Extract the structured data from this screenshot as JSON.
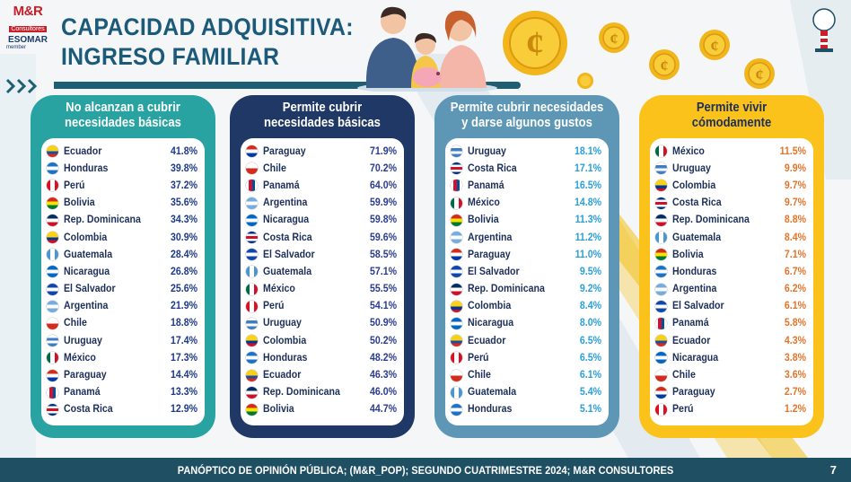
{
  "logo": {
    "brand": "M&R",
    "sub": "Consultores",
    "esomar": "ESOMAR",
    "member": "member"
  },
  "title": {
    "line1": "CAPACIDAD ADQUISITIVA:",
    "line2": "INGRESO FAMILIAR"
  },
  "colors": {
    "teal": "#29a3a1",
    "navy": "#1f3866",
    "steel": "#5e97b5",
    "gold": "#fbc21b",
    "pct_teal": "#1e3a8a",
    "pct_navy": "#2a3c8f",
    "pct_steel": "#2b9fd8",
    "pct_gold": "#e3742a"
  },
  "cards": [
    {
      "title_l1": "No alcanzan a cubrir",
      "title_l2": "necesidades básicas",
      "rows": [
        {
          "country": "Ecuador",
          "value": "41.8%"
        },
        {
          "country": "Honduras",
          "value": "39.8%"
        },
        {
          "country": "Perú",
          "value": "37.2%"
        },
        {
          "country": "Bolivia",
          "value": "35.6%"
        },
        {
          "country": "Rep. Dominicana",
          "value": "34.3%"
        },
        {
          "country": "Colombia",
          "value": "30.9%"
        },
        {
          "country": "Guatemala",
          "value": "28.4%"
        },
        {
          "country": "Nicaragua",
          "value": "26.8%"
        },
        {
          "country": "El Salvador",
          "value": "25.6%"
        },
        {
          "country": "Argentina",
          "value": "21.9%"
        },
        {
          "country": "Chile",
          "value": "18.8%"
        },
        {
          "country": "Uruguay",
          "value": "17.4%"
        },
        {
          "country": "México",
          "value": "17.3%"
        },
        {
          "country": "Paraguay",
          "value": "14.4%"
        },
        {
          "country": "Panamá",
          "value": "13.3%"
        },
        {
          "country": "Costa Rica",
          "value": "12.9%"
        }
      ]
    },
    {
      "title_l1": "Permite cubrir",
      "title_l2": "necesidades básicas",
      "rows": [
        {
          "country": "Paraguay",
          "value": "71.9%"
        },
        {
          "country": "Chile",
          "value": "70.2%"
        },
        {
          "country": "Panamá",
          "value": "64.0%"
        },
        {
          "country": "Argentina",
          "value": "59.9%"
        },
        {
          "country": "Nicaragua",
          "value": "59.8%"
        },
        {
          "country": "Costa Rica",
          "value": "59.6%"
        },
        {
          "country": "El Salvador",
          "value": "58.5%"
        },
        {
          "country": "Guatemala",
          "value": "57.1%"
        },
        {
          "country": "México",
          "value": "55.5%"
        },
        {
          "country": "Perú",
          "value": "54.1%"
        },
        {
          "country": "Uruguay",
          "value": "50.9%"
        },
        {
          "country": "Colombia",
          "value": "50.2%"
        },
        {
          "country": "Honduras",
          "value": "48.2%"
        },
        {
          "country": "Ecuador",
          "value": "46.3%"
        },
        {
          "country": "Rep. Dominicana",
          "value": "46.0%"
        },
        {
          "country": "Bolivia",
          "value": "44.7%"
        }
      ]
    },
    {
      "title_l1": "Permite cubrir necesidades",
      "title_l2": "y darse algunos gustos",
      "rows": [
        {
          "country": "Uruguay",
          "value": "18.1%"
        },
        {
          "country": "Costa Rica",
          "value": "17.1%"
        },
        {
          "country": "Panamá",
          "value": "16.5%"
        },
        {
          "country": "México",
          "value": "14.8%"
        },
        {
          "country": "Bolivia",
          "value": "11.3%"
        },
        {
          "country": "Argentina",
          "value": "11.2%"
        },
        {
          "country": "Paraguay",
          "value": "11.0%"
        },
        {
          "country": "El Salvador",
          "value": "9.5%"
        },
        {
          "country": "Rep. Dominicana",
          "value": "9.2%"
        },
        {
          "country": "Colombia",
          "value": "8.4%"
        },
        {
          "country": "Nicaragua",
          "value": "8.0%"
        },
        {
          "country": "Ecuador",
          "value": "6.5%"
        },
        {
          "country": "Perú",
          "value": "6.5%"
        },
        {
          "country": "Chile",
          "value": "6.1%"
        },
        {
          "country": "Guatemala",
          "value": "5.4%"
        },
        {
          "country": "Honduras",
          "value": "5.1%"
        }
      ]
    },
    {
      "title_l1": "Permite vivir",
      "title_l2": "cómodamente",
      "rows": [
        {
          "country": "México",
          "value": "11.5%"
        },
        {
          "country": "Uruguay",
          "value": "9.9%"
        },
        {
          "country": "Colombia",
          "value": "9.7%"
        },
        {
          "country": "Costa Rica",
          "value": "9.7%"
        },
        {
          "country": "Rep. Dominicana",
          "value": "8.8%"
        },
        {
          "country": "Guatemala",
          "value": "8.4%"
        },
        {
          "country": "Bolivia",
          "value": "7.1%"
        },
        {
          "country": "Honduras",
          "value": "6.7%"
        },
        {
          "country": "Argentina",
          "value": "6.2%"
        },
        {
          "country": "El Salvador",
          "value": "6.1%"
        },
        {
          "country": "Panamá",
          "value": "5.8%"
        },
        {
          "country": "Ecuador",
          "value": "4.3%"
        },
        {
          "country": "Nicaragua",
          "value": "3.8%"
        },
        {
          "country": "Chile",
          "value": "3.6%"
        },
        {
          "country": "Paraguay",
          "value": "2.7%"
        },
        {
          "country": "Perú",
          "value": "1.2%"
        }
      ]
    }
  ],
  "footer": {
    "text": "PANÓPTICO DE OPINIÓN PÚBLICA; (M&R_POP); SEGUNDO CUATRIMESTRE 2024; M&R CONSULTORES",
    "page": "7"
  }
}
